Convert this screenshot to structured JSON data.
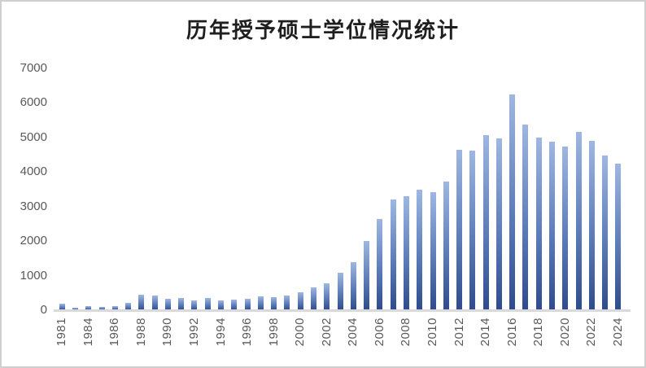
{
  "chart_data": {
    "type": "bar",
    "title": "历年授予硕士学位情况统计",
    "xlabel": "",
    "ylabel": "",
    "ylim": [
      0,
      7000
    ],
    "y_ticks": [
      0,
      1000,
      2000,
      3000,
      4000,
      5000,
      6000,
      7000
    ],
    "grid": false,
    "legend": false,
    "x_tick_labels_shown": [
      "1981",
      "1984",
      "1986",
      "1988",
      "1990",
      "1992",
      "1994",
      "1996",
      "1998",
      "2000",
      "2002",
      "2004",
      "2006",
      "2008",
      "2010",
      "2012",
      "2014",
      "2016",
      "2018",
      "2020",
      "2022",
      "2024"
    ],
    "categories": [
      "1981",
      "1983",
      "1984",
      "1985",
      "1986",
      "1987",
      "1988",
      "1989",
      "1990",
      "1991",
      "1992",
      "1993",
      "1994",
      "1995",
      "1996",
      "1997",
      "1998",
      "1999",
      "2000",
      "2001",
      "2002",
      "2003",
      "2004",
      "2005",
      "2006",
      "2007",
      "2008",
      "2009",
      "2010",
      "2011",
      "2012",
      "2013",
      "2014",
      "2015",
      "2016",
      "2017",
      "2018",
      "2019",
      "2020",
      "2021",
      "2022",
      "2023",
      "2024"
    ],
    "values": [
      180,
      80,
      110,
      105,
      125,
      210,
      460,
      430,
      340,
      345,
      285,
      365,
      290,
      315,
      320,
      400,
      390,
      430,
      530,
      650,
      780,
      1090,
      1390,
      2010,
      2640,
      3200,
      3290,
      3480,
      3430,
      3730,
      4650,
      4630,
      5070,
      4980,
      6250,
      5370,
      5000,
      4870,
      4740,
      5170,
      4910,
      4480,
      4250
    ]
  },
  "colors": {
    "bar_gradient_top": "#9EB7E2",
    "bar_gradient_bottom": "#2E4C8C",
    "axis_line": "#D9D9D9",
    "tick_label": "#595959",
    "title_text": "#1F1F1F",
    "frame_border": "#CFCFCF",
    "background": "#FFFFFF"
  }
}
